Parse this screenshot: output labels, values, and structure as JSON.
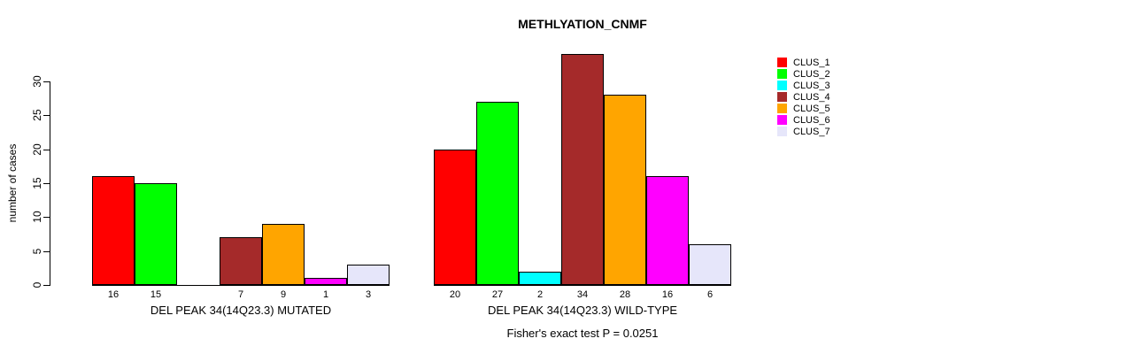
{
  "title": "METHLYATION_CNMF",
  "footer": "Fisher's exact test P = 0.0251",
  "y_axis": {
    "label": "number of cases",
    "ticks": [
      0,
      5,
      10,
      15,
      20,
      25,
      30
    ]
  },
  "legend": {
    "items": [
      {
        "label": "CLUS_1",
        "color": "#FF0000"
      },
      {
        "label": "CLUS_2",
        "color": "#00FF00"
      },
      {
        "label": "CLUS_3",
        "color": "#00FFFF"
      },
      {
        "label": "CLUS_4",
        "color": "#A52A2A"
      },
      {
        "label": "CLUS_5",
        "color": "#FFA500"
      },
      {
        "label": "CLUS_6",
        "color": "#FF00FF"
      },
      {
        "label": "CLUS_7",
        "color": "#E6E6FA"
      }
    ]
  },
  "chart_data": {
    "type": "bar",
    "title": "METHLYATION_CNMF",
    "xlabel": "",
    "ylabel": "number of cases",
    "ylim": [
      0,
      30
    ],
    "yticks": [
      0,
      5,
      10,
      15,
      20,
      25,
      30
    ],
    "grid": false,
    "legend_position": "right",
    "annotation": "Fisher's exact test P = 0.0251",
    "categories": [
      "CLUS_1",
      "CLUS_2",
      "CLUS_3",
      "CLUS_4",
      "CLUS_5",
      "CLUS_6",
      "CLUS_7"
    ],
    "colors": [
      "#FF0000",
      "#00FF00",
      "#00FFFF",
      "#A52A2A",
      "#FFA500",
      "#FF00FF",
      "#E6E6FA"
    ],
    "groups": [
      {
        "label": "DEL PEAK 34(14Q23.3) MUTATED",
        "values": [
          16,
          15,
          0,
          7,
          9,
          1,
          3
        ],
        "bar_labels": [
          "16",
          "15",
          "",
          "7",
          "9",
          "1",
          "3"
        ]
      },
      {
        "label": "DEL PEAK 34(14Q23.3) WILD-TYPE",
        "values": [
          20,
          27,
          2,
          34,
          28,
          16,
          6
        ],
        "bar_labels": [
          "20",
          "27",
          "2",
          "34",
          "28",
          "16",
          "6"
        ]
      }
    ]
  }
}
